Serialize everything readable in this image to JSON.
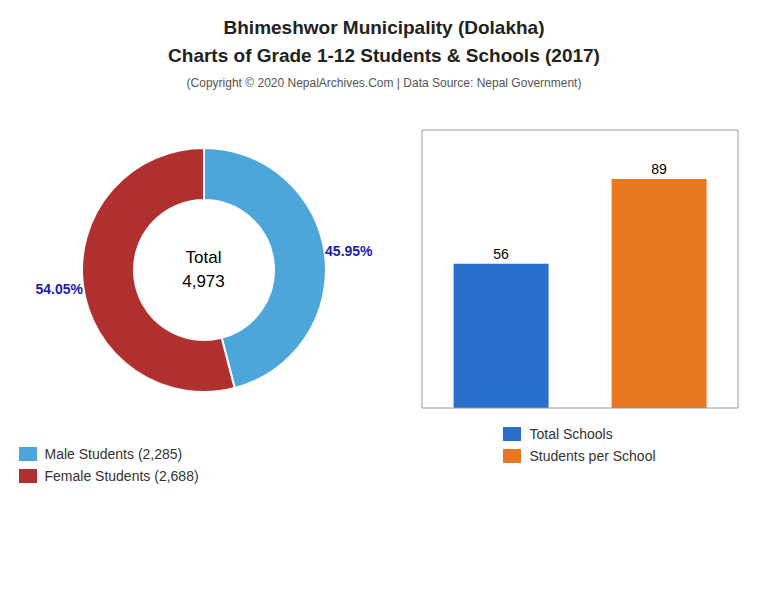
{
  "title": [
    "Bhimeshwor Municipality (Dolakha)",
    "Charts of Grade 1-12 Students & Schools (2017)"
  ],
  "subtitle": "(Copyright © 2020 NepalArchives.Com | Data Source: Nepal Government)",
  "chart_data": [
    {
      "type": "pie",
      "categories": [
        "Male Students (2,285)",
        "Female Students (2,688)"
      ],
      "values": [
        45.95,
        54.05
      ],
      "value_labels": [
        "45.95%",
        "54.05%"
      ],
      "data_labels": true,
      "colors": [
        "#4da6d9",
        "#b03030"
      ],
      "annotations": [
        "Total",
        "4,973"
      ],
      "legend": "lower left"
    },
    {
      "type": "bar",
      "categories": [
        "Total Schools",
        "Students per School"
      ],
      "values": [
        56,
        89
      ],
      "colors": [
        "#2b6fce",
        "#e87722"
      ],
      "ylim": [
        0,
        108
      ],
      "tick_labels": false,
      "data_labels": true,
      "legend": "lower center"
    }
  ]
}
